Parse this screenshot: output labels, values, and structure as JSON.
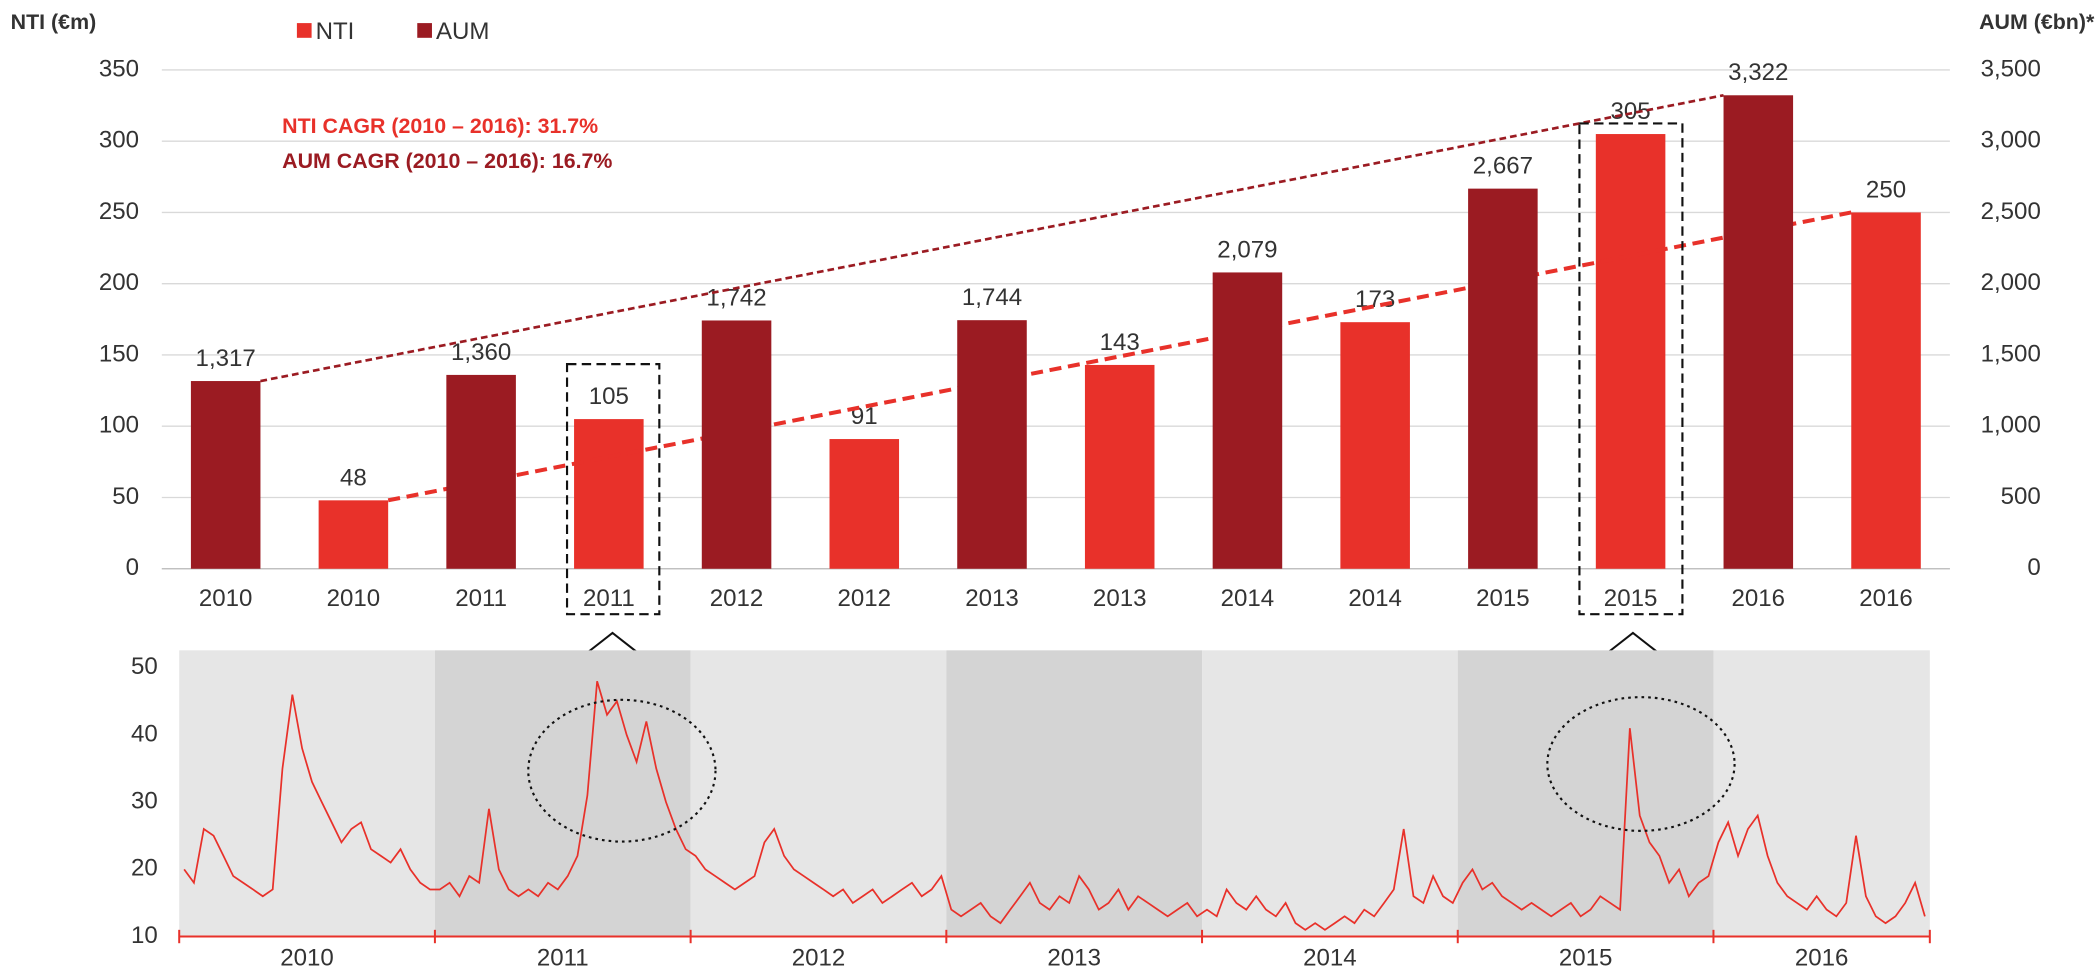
{
  "chart_data": [
    {
      "type": "bar",
      "categories": [
        "2010",
        "2010",
        "2011",
        "2011",
        "2012",
        "2012",
        "2013",
        "2013",
        "2014",
        "2014",
        "2015",
        "2015",
        "2016",
        "2016"
      ],
      "series": [
        {
          "name": "NTI",
          "color": "#e8312a",
          "values": [
            null,
            48,
            null,
            105,
            null,
            91,
            null,
            143,
            null,
            173,
            null,
            305,
            null,
            250
          ]
        },
        {
          "name": "AUM",
          "color": "#9b1b22",
          "axis": "y2",
          "values": [
            1317,
            null,
            1360,
            null,
            1742,
            null,
            1744,
            null,
            2079,
            null,
            2667,
            null,
            3322,
            null
          ],
          "value_labels": [
            "1,317",
            null,
            "1,360",
            null,
            "1,742",
            null,
            "1,744",
            null,
            "2,079",
            null,
            "2,667",
            null,
            "3,322",
            null
          ]
        }
      ],
      "ylabel": "NTI (€m)",
      "y2label": "AUM (€bn)*",
      "ylim": [
        0,
        350
      ],
      "yticks": [
        0,
        50,
        100,
        150,
        200,
        250,
        300,
        350
      ],
      "y2lim": [
        0,
        3500
      ],
      "y2ticks": [
        0,
        500,
        {
          "value": 1000,
          "label": "1,000"
        },
        {
          "value": 1500,
          "label": "1,500"
        },
        {
          "value": 2000,
          "label": "2,000"
        },
        {
          "value": 2500,
          "label": "2,500"
        },
        {
          "value": 3000,
          "label": "3,000"
        },
        {
          "value": 3500,
          "label": "3,500"
        }
      ],
      "annotations": [
        "NTI CAGR (2010 – 2016): 31.7%",
        "AUM CAGR (2010 – 2016): 16.7%"
      ],
      "grid": true,
      "legend": "top"
    },
    {
      "type": "line",
      "bands": [
        "2010",
        "2011",
        "2012",
        "2013",
        "2014",
        "2015",
        "2016"
      ],
      "color": "#e8312a",
      "values": [
        20,
        18,
        26,
        25,
        22,
        19,
        18,
        17,
        16,
        17,
        35,
        46,
        38,
        33,
        30,
        27,
        24,
        26,
        27,
        23,
        22,
        21,
        23,
        20,
        18,
        17,
        17,
        18,
        16,
        19,
        18,
        29,
        20,
        17,
        16,
        17,
        16,
        18,
        17,
        19,
        22,
        31,
        48,
        43,
        45,
        40,
        36,
        42,
        35,
        30,
        26,
        23,
        22,
        20,
        19,
        18,
        17,
        18,
        19,
        24,
        26,
        22,
        20,
        19,
        18,
        17,
        16,
        17,
        15,
        16,
        17,
        15,
        16,
        17,
        18,
        16,
        17,
        19,
        14,
        13,
        14,
        15,
        13,
        12,
        14,
        16,
        18,
        15,
        14,
        16,
        15,
        19,
        17,
        14,
        15,
        17,
        14,
        16,
        15,
        14,
        13,
        14,
        15,
        13,
        14,
        13,
        17,
        15,
        14,
        16,
        14,
        13,
        15,
        12,
        11,
        12,
        11,
        12,
        13,
        12,
        14,
        13,
        15,
        17,
        26,
        16,
        15,
        19,
        16,
        15,
        18,
        20,
        17,
        18,
        16,
        15,
        14,
        15,
        14,
        13,
        14,
        15,
        13,
        14,
        16,
        15,
        14,
        41,
        28,
        24,
        22,
        18,
        20,
        16,
        18,
        19,
        24,
        27,
        22,
        26,
        28,
        22,
        18,
        16,
        15,
        14,
        16,
        14,
        13,
        15,
        25,
        16,
        13,
        12,
        13,
        15,
        18,
        13
      ],
      "ylim": [
        10,
        50
      ],
      "yticks": [
        10,
        20,
        30,
        40,
        50
      ]
    }
  ]
}
